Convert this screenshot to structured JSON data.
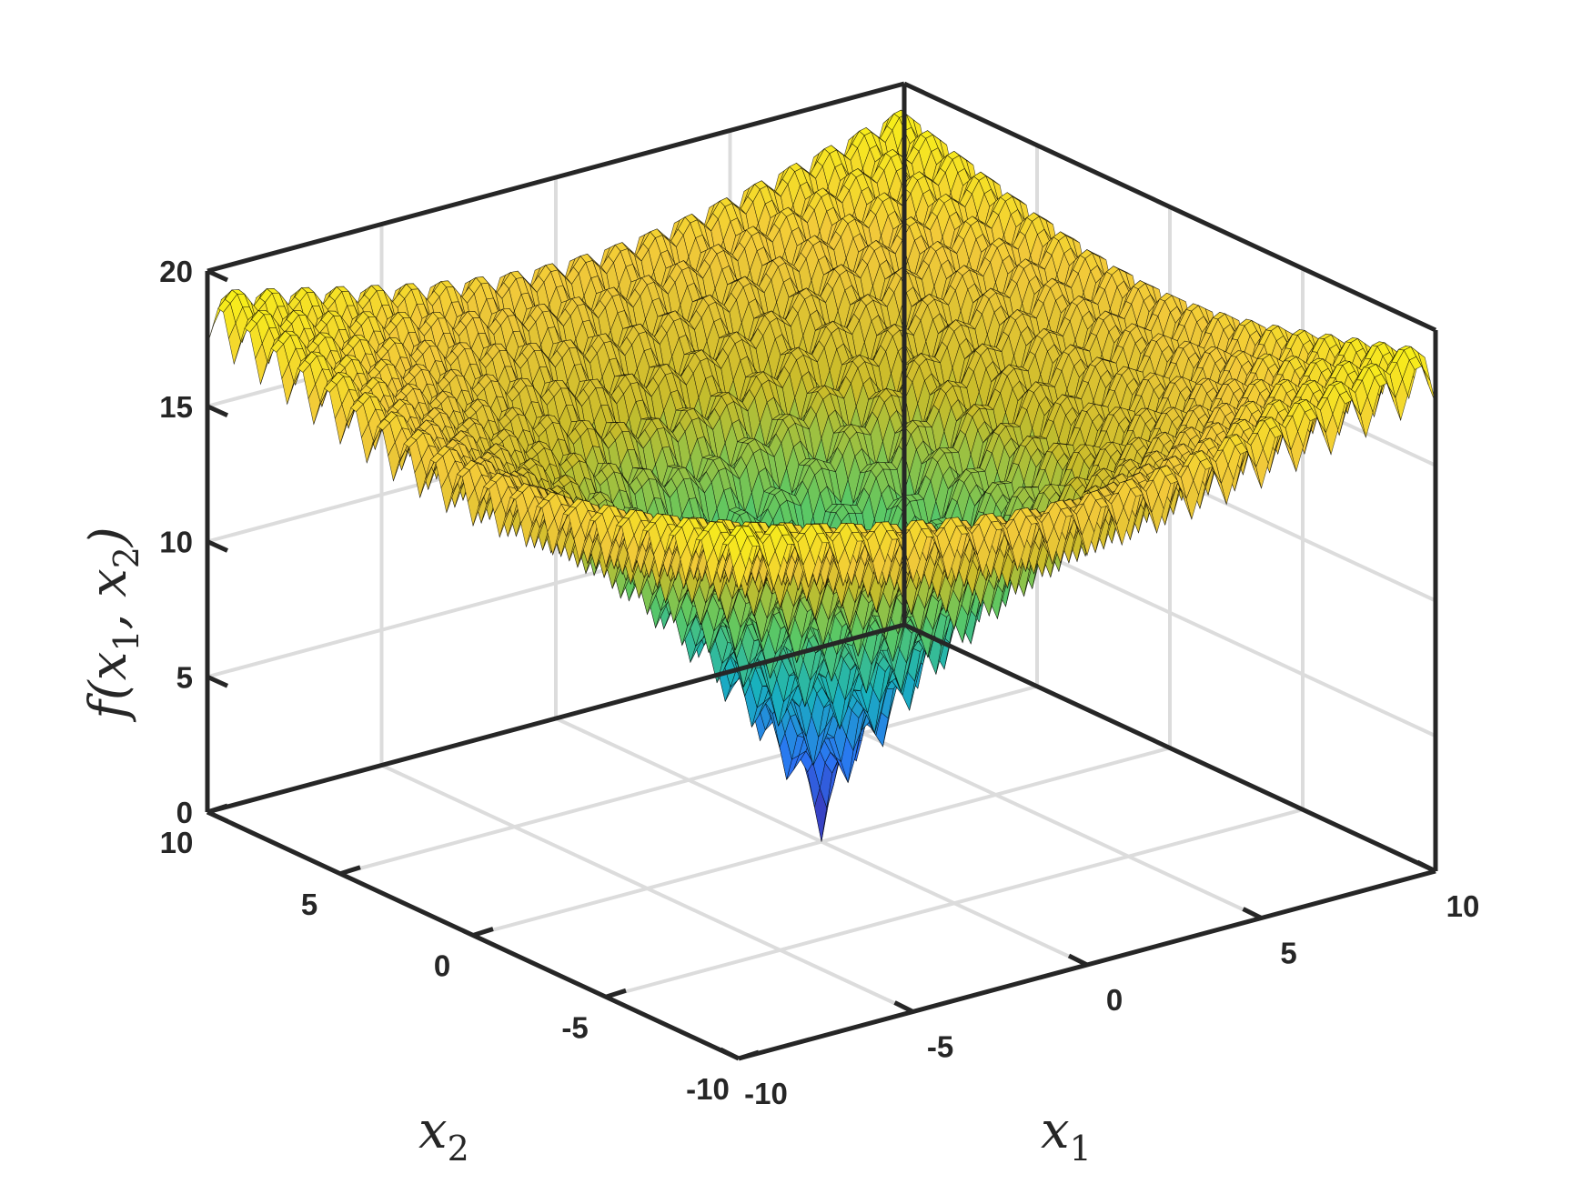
{
  "chart_data": {
    "type": "surface",
    "surface": {
      "name": "",
      "x_range": [
        -10,
        10
      ],
      "y_range": [
        -10,
        10
      ],
      "z_range": [
        0,
        20
      ],
      "samples_per_axis": 121,
      "approx_min": {
        "x1": 0,
        "x2": 0,
        "f": 0
      },
      "approx_max_at_corners": 20,
      "colormap": [
        "#3e26a8",
        "#2b74f4",
        "#19b2bc",
        "#5cc863",
        "#c9bc2a",
        "#f2c93a",
        "#f9fb0e"
      ],
      "edge_color": "#000000"
    },
    "axes": {
      "x": {
        "label": "x",
        "label_subscript": "1",
        "lim": [
          -10,
          10
        ],
        "ticks": [
          -10,
          -5,
          0,
          5,
          10
        ],
        "tick_labels": [
          "-10",
          "-5",
          "0",
          "5",
          "10"
        ]
      },
      "y": {
        "label": "x",
        "label_subscript": "2",
        "lim": [
          -10,
          10
        ],
        "ticks": [
          -10,
          -5,
          0,
          5,
          10
        ],
        "tick_labels": [
          "-10",
          "-5",
          "0",
          "5",
          "10"
        ]
      },
      "z": {
        "label": "f(x1, x2)",
        "lim": [
          0,
          20
        ],
        "ticks": [
          0,
          5,
          10,
          15,
          20
        ],
        "tick_labels": [
          "0",
          "5",
          "10",
          "15",
          "20"
        ]
      }
    },
    "grid": true,
    "box": true,
    "view": "3d-default"
  }
}
